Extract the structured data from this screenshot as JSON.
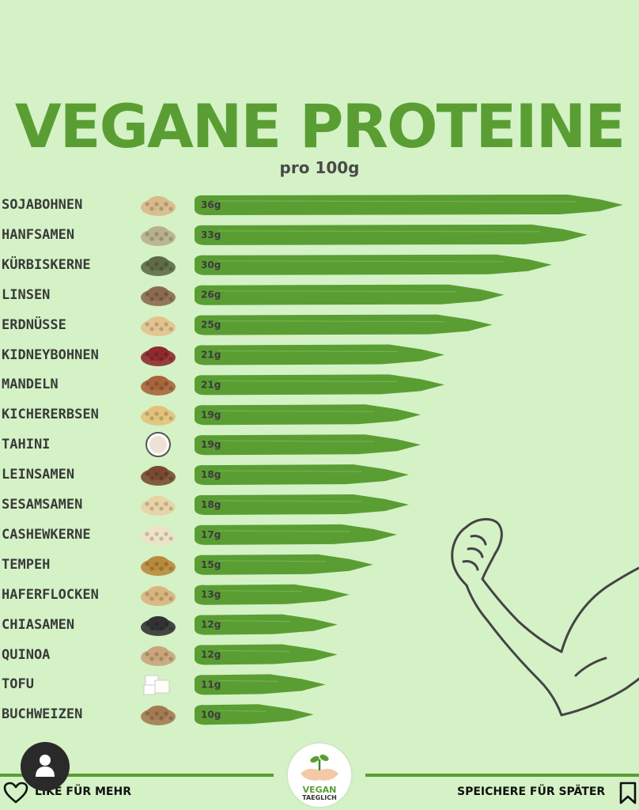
{
  "header": {
    "title": "VEGANE PROTEINE",
    "subtitle": "pro 100g"
  },
  "chart_data": {
    "type": "bar",
    "orientation": "horizontal",
    "unit": "g",
    "categories": [
      "SOJABOHNEN",
      "HANFSAMEN",
      "KÜRBISKERNE",
      "LINSEN",
      "ERDNÜSSE",
      "KIDNEYBOHNEN",
      "MANDELN",
      "KICHERERBSEN",
      "TAHINI",
      "LEINSAMEN",
      "SESAMSAMEN",
      "CASHEWKERNE",
      "TEMPEH",
      "HAFERFLOCKEN",
      "CHIASAMEN",
      "QUINOA",
      "TOFU",
      "BUCHWEIZEN"
    ],
    "values": [
      36,
      33,
      30,
      26,
      25,
      21,
      21,
      19,
      19,
      18,
      18,
      17,
      15,
      13,
      12,
      12,
      11,
      10
    ],
    "value_labels": [
      "36g",
      "33g",
      "30g",
      "26g",
      "25g",
      "21g",
      "21g",
      "19g",
      "19g",
      "18g",
      "18g",
      "17g",
      "15g",
      "13g",
      "12g",
      "12g",
      "11g",
      "10g"
    ],
    "bar_color": "#5a9e33"
  },
  "icons": [
    "soybean-icon",
    "hemp-seed-icon",
    "pumpkin-seed-icon",
    "lentil-icon",
    "peanut-icon",
    "kidney-bean-icon",
    "almond-icon",
    "chickpea-icon",
    "tahini-icon",
    "flaxseed-icon",
    "sesame-icon",
    "cashew-icon",
    "tempeh-icon",
    "oat-icon",
    "chia-icon",
    "quinoa-icon",
    "tofu-icon",
    "buckwheat-icon"
  ],
  "footer": {
    "like_label": "LIKE FÜR MEHR",
    "save_label": "SPEICHERE FÜR SPÄTER",
    "logo_line1": "VEGAN",
    "logo_line2": "TAEGLICH"
  },
  "colors": {
    "background": "#d4f2c6",
    "accent": "#5a9e33",
    "text": "#3a3a3a"
  }
}
